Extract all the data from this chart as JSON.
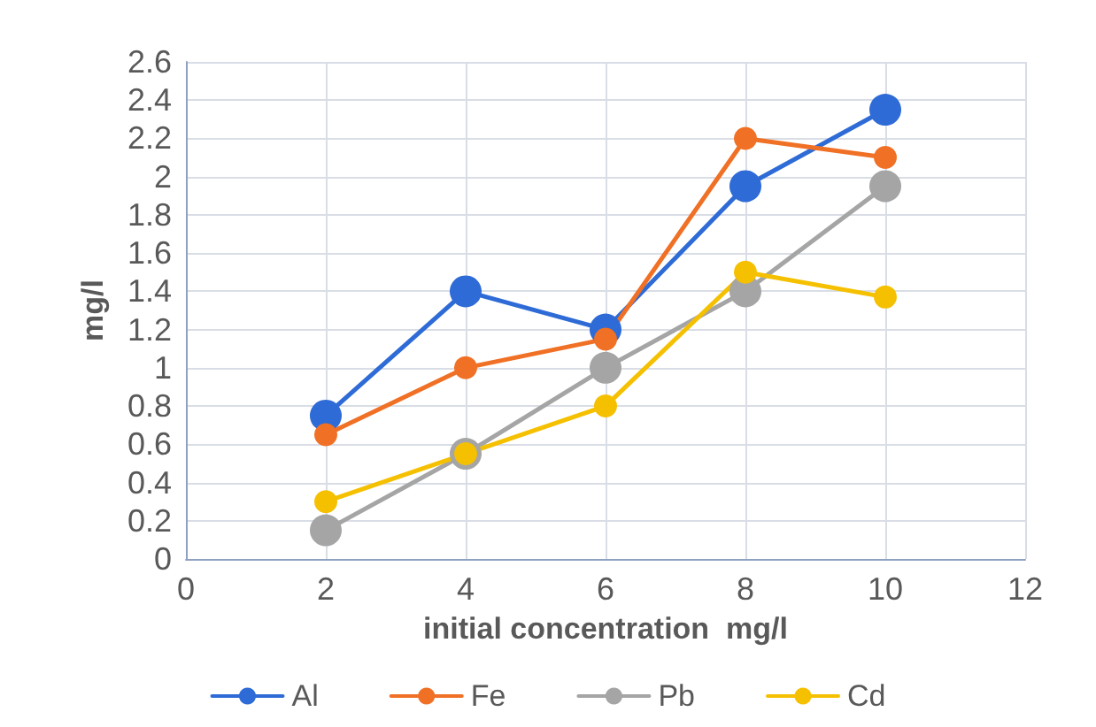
{
  "chart_data": {
    "type": "line",
    "xlabel": "initial concentration  mg/l",
    "ylabel": "mg/l",
    "x": [
      2,
      4,
      6,
      8,
      10
    ],
    "xlim": [
      0,
      12
    ],
    "xticks": [
      0,
      2,
      4,
      6,
      8,
      10,
      12
    ],
    "ylim": [
      0,
      2.6
    ],
    "yticks": [
      0,
      0.2,
      0.4,
      0.6,
      0.8,
      1,
      1.2,
      1.4,
      1.6,
      1.8,
      2,
      2.2,
      2.4,
      2.6
    ],
    "grid": true,
    "legend": "bottom",
    "marker": "circle",
    "line_style": "solid",
    "series": [
      {
        "name": "Al",
        "color": "#2e6bd6",
        "values": [
          0.75,
          1.4,
          1.2,
          1.95,
          2.35
        ]
      },
      {
        "name": "Fe",
        "color": "#f07025",
        "values": [
          0.65,
          1.0,
          1.15,
          2.2,
          2.1
        ]
      },
      {
        "name": "Pb",
        "color": "#a5a5a5",
        "values": [
          0.15,
          0.55,
          1.0,
          1.4,
          1.95
        ]
      },
      {
        "name": "Cd",
        "color": "#f5c000",
        "values": [
          0.3,
          0.55,
          0.8,
          1.5,
          1.37
        ]
      }
    ]
  }
}
